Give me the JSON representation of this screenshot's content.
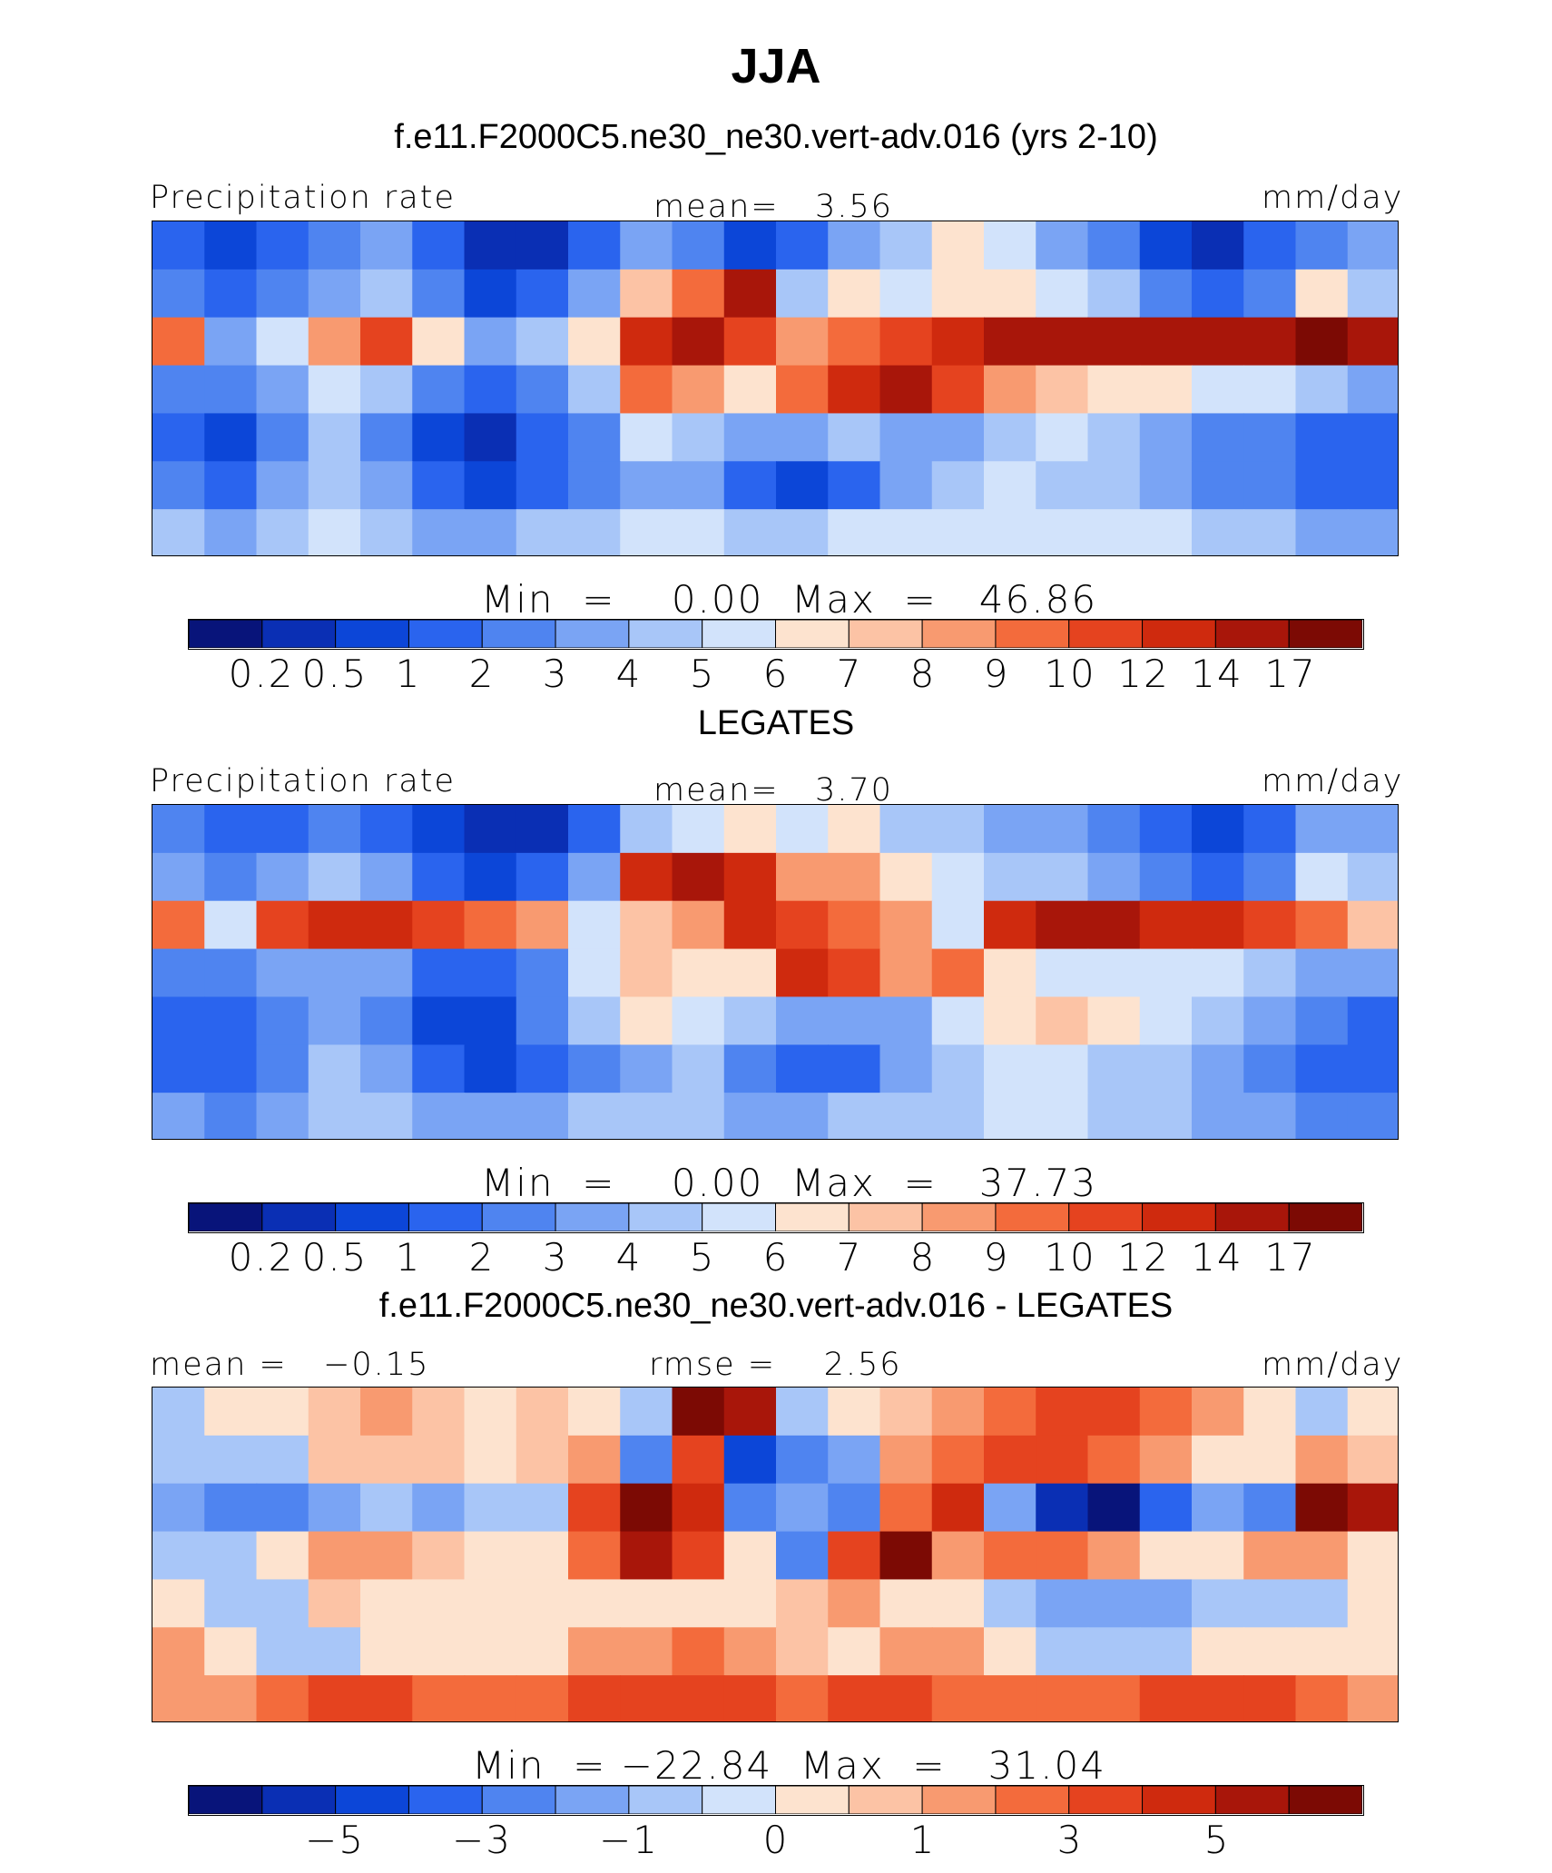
{
  "figure": {
    "title": "JJA"
  },
  "colorbar_colors": [
    "#08147a",
    "#0a2fb4",
    "#0c46d8",
    "#2a64ee",
    "#4f84f0",
    "#7aa4f4",
    "#a8c6f8",
    "#d2e3fb",
    "#fde3cf",
    "#fcc3a5",
    "#f89a70",
    "#f36b3c",
    "#e5431f",
    "#cf2a0e",
    "#a8160a",
    "#7c0a04"
  ],
  "chart_data": [
    {
      "type": "heatmap",
      "title": "f.e11.F2000C5.ne30_ne30.vert-adv.016 (yrs 2-10)",
      "left_label": "Precipitation rate",
      "center_label": "mean=   3.56",
      "units": "mm/day",
      "min_max": "Min  =    0.00  Max  =   46.86",
      "colorbar_ticks": [
        "0.2",
        "0.5",
        "1",
        "2",
        "3",
        "4",
        "5",
        "6",
        "7",
        "8",
        "9",
        "10",
        "12",
        "14",
        "17"
      ],
      "values": [
        [
          1,
          0.5,
          1,
          2,
          3,
          1,
          0.2,
          0.2,
          1,
          3,
          2,
          0.5,
          1,
          3,
          4,
          6,
          5,
          3,
          2,
          0.5,
          0.2,
          1,
          2,
          3
        ],
        [
          2,
          1,
          2,
          3,
          4,
          2,
          0.5,
          1,
          3,
          7,
          9,
          14,
          4,
          6,
          5,
          6,
          6,
          5,
          4,
          2,
          1,
          2,
          6,
          4
        ],
        [
          9,
          3,
          5,
          8,
          10,
          6,
          3,
          4,
          6,
          12,
          14,
          10,
          8,
          9,
          10,
          12,
          14,
          14,
          14,
          14,
          14,
          14,
          17,
          14
        ],
        [
          2,
          2,
          3,
          5,
          4,
          2,
          1,
          2,
          4,
          9,
          8,
          6,
          9,
          12,
          14,
          10,
          8,
          7,
          6,
          6,
          5,
          5,
          4,
          3
        ],
        [
          1,
          0.5,
          2,
          4,
          2,
          0.5,
          0.2,
          1,
          2,
          5,
          4,
          3,
          3,
          4,
          3,
          3,
          4,
          5,
          4,
          3,
          2,
          2,
          1,
          1
        ],
        [
          2,
          1,
          3,
          4,
          3,
          1,
          0.5,
          1,
          2,
          3,
          3,
          1,
          0.5,
          1,
          3,
          4,
          5,
          4,
          4,
          3,
          2,
          2,
          1,
          1
        ],
        [
          4,
          3,
          4,
          5,
          4,
          3,
          3,
          4,
          4,
          5,
          5,
          4,
          4,
          5,
          5,
          5,
          5,
          5,
          5,
          5,
          4,
          4,
          3,
          3
        ]
      ]
    },
    {
      "type": "heatmap",
      "title": "LEGATES",
      "left_label": "Precipitation rate",
      "center_label": "mean=   3.70",
      "units": "mm/day",
      "min_max": "Min  =    0.00  Max  =   37.73",
      "colorbar_ticks": [
        "0.2",
        "0.5",
        "1",
        "2",
        "3",
        "4",
        "5",
        "6",
        "7",
        "8",
        "9",
        "10",
        "12",
        "14",
        "17"
      ],
      "values": [
        [
          2,
          1,
          1,
          2,
          1,
          0.5,
          0.2,
          0.2,
          1,
          4,
          5,
          6,
          5,
          6,
          4,
          4,
          3,
          3,
          2,
          1,
          0.5,
          1,
          3,
          3
        ],
        [
          3,
          2,
          3,
          4,
          3,
          1,
          0.5,
          1,
          3,
          12,
          14,
          12,
          8,
          8,
          6,
          5,
          4,
          4,
          3,
          2,
          1,
          2,
          5,
          4
        ],
        [
          9,
          5,
          10,
          12,
          12,
          10,
          9,
          8,
          5,
          7,
          8,
          12,
          10,
          9,
          8,
          5,
          12,
          14,
          14,
          12,
          12,
          10,
          9,
          7
        ],
        [
          2,
          2,
          3,
          3,
          3,
          1,
          1,
          2,
          5,
          7,
          6,
          6,
          12,
          10,
          8,
          9,
          6,
          5,
          5,
          5,
          5,
          4,
          3,
          3
        ],
        [
          1,
          1,
          2,
          3,
          2,
          0.5,
          0.5,
          2,
          4,
          6,
          5,
          4,
          3,
          3,
          3,
          5,
          6,
          7,
          6,
          5,
          4,
          3,
          2,
          1
        ],
        [
          1,
          1,
          2,
          4,
          3,
          1,
          0.5,
          1,
          2,
          3,
          4,
          2,
          1,
          1,
          3,
          4,
          5,
          5,
          4,
          4,
          3,
          2,
          1,
          1
        ],
        [
          3,
          2,
          3,
          4,
          4,
          3,
          3,
          3,
          4,
          4,
          4,
          3,
          3,
          4,
          4,
          4,
          5,
          5,
          4,
          4,
          3,
          3,
          2,
          2
        ]
      ]
    },
    {
      "type": "heatmap",
      "title": "f.e11.F2000C5.ne30_ne30.vert-adv.016 - LEGATES",
      "left_label": "mean =   −0.15",
      "center_label": "rmse =    2.56",
      "units": "mm/day",
      "min_max": "Min  = −22.84  Max  =   31.04",
      "colorbar_ticks": [
        "−5",
        "−3",
        "−1",
        "0",
        "1",
        "3",
        "5"
      ],
      "values": [
        [
          -1,
          0,
          0,
          0.5,
          1,
          0.5,
          0,
          0.5,
          0,
          -1,
          6,
          5,
          -1,
          0,
          0.5,
          1,
          2,
          3,
          3,
          2,
          1,
          0,
          -1,
          0
        ],
        [
          -1,
          -1,
          -1,
          0.5,
          0.5,
          0.5,
          0,
          0.5,
          1,
          -3,
          3,
          -5,
          -3,
          -2,
          1,
          2,
          3,
          3,
          2,
          1,
          0,
          0,
          1,
          0.5
        ],
        [
          -2,
          -3,
          -3,
          -2,
          -1,
          -2,
          -1,
          -1,
          3,
          6,
          4,
          -3,
          -2,
          -3,
          2,
          4,
          -2,
          -6,
          -7,
          -4,
          -2,
          -3,
          8,
          5
        ],
        [
          -1,
          -1,
          0,
          1,
          1,
          0.5,
          0,
          0,
          2,
          5,
          3,
          0,
          -3,
          3,
          6,
          1,
          2,
          2,
          1,
          0,
          0,
          1,
          1,
          0
        ],
        [
          0,
          -1,
          -1,
          0.5,
          0,
          0,
          0,
          0,
          0,
          0,
          0,
          0,
          0.5,
          1,
          0,
          0,
          -1,
          -2,
          -2,
          -2,
          -1,
          -1,
          -1,
          0
        ],
        [
          1,
          0,
          -1,
          -1,
          0,
          0,
          0,
          0,
          1,
          1,
          2,
          1,
          0.5,
          0,
          1,
          1,
          0,
          -1,
          -1,
          -1,
          0,
          0,
          0,
          0
        ],
        [
          1,
          1,
          2,
          3,
          3,
          2,
          2,
          2,
          3,
          3,
          3,
          3,
          2,
          3,
          3,
          2,
          2,
          2,
          2,
          3,
          3,
          3,
          2,
          1
        ]
      ]
    }
  ]
}
